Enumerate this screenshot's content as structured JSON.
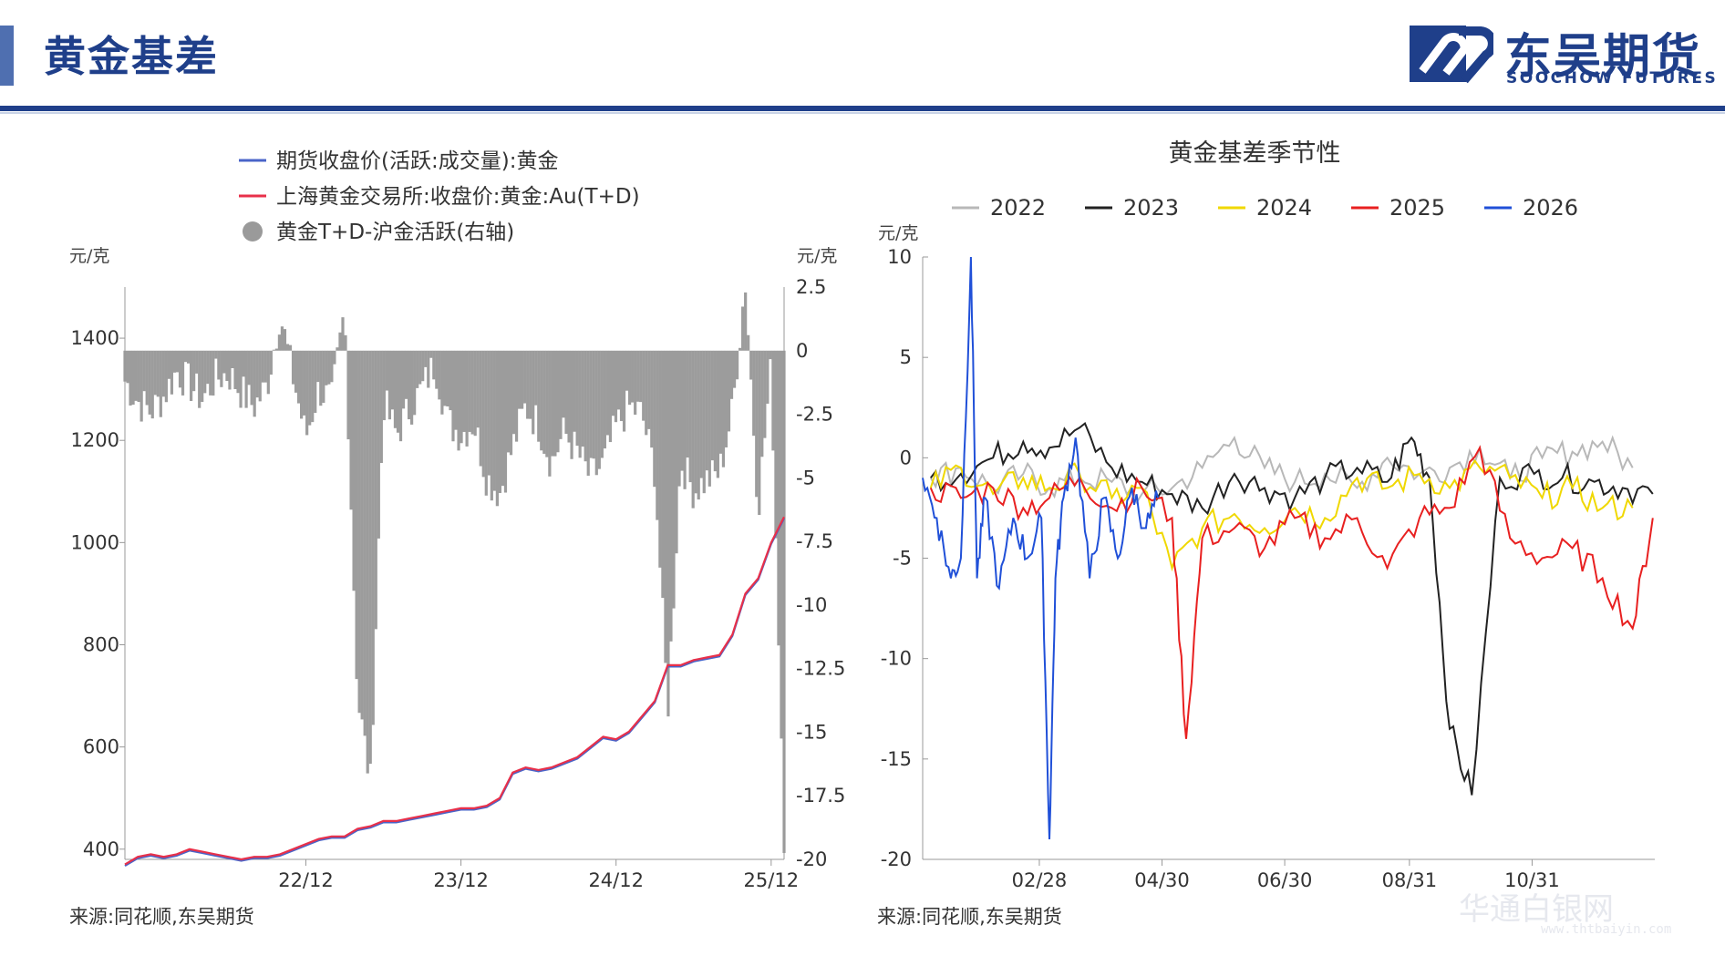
{
  "header": {
    "title": "黄金基差",
    "brand_cn": "东吴期货",
    "brand_en": "SOOCHOW FUTURES",
    "brand_color": "#1f3f8a",
    "accent_color": "#4f6fb0"
  },
  "watermark": {
    "text": "华通白银网",
    "url": "www.thtbaiyin.com"
  },
  "chart_data": [
    {
      "type": "line",
      "legend": [
        {
          "name": "期货收盘价(活跃:成交量):黄金",
          "color": "#4a64c8",
          "marker": "line"
        },
        {
          "name": "上海黄金交易所:收盘价:黄金:Au(T+D)",
          "color": "#e8304a",
          "marker": "line"
        },
        {
          "name": "黄金T+D-沪金活跃(右轴)",
          "color": "#9a9a9a",
          "marker": "dot"
        }
      ],
      "y_left": {
        "label": "元/克",
        "ticks": [
          400,
          600,
          800,
          1000,
          1200,
          1400
        ],
        "range": [
          380,
          1500
        ]
      },
      "y_right": {
        "label": "元/克",
        "ticks": [
          "2.5",
          "0",
          "-2.5",
          "-5",
          "-7.5",
          "-10",
          "-12.5",
          "-15",
          "-17.5",
          "-20"
        ],
        "range": [
          -20,
          2.5
        ]
      },
      "x_ticks": [
        "22/12",
        "23/12",
        "24/12",
        "25/12"
      ],
      "x_range": [
        "2021-10",
        "2026-01"
      ],
      "price_series": {
        "x": [
          "2021-10",
          "2021-11",
          "2021-12",
          "2022-01",
          "2022-02",
          "2022-03",
          "2022-04",
          "2022-05",
          "2022-06",
          "2022-07",
          "2022-08",
          "2022-09",
          "2022-10",
          "2022-11",
          "2022-12",
          "2023-01",
          "2023-02",
          "2023-03",
          "2023-04",
          "2023-05",
          "2023-06",
          "2023-07",
          "2023-08",
          "2023-09",
          "2023-10",
          "2023-11",
          "2023-12",
          "2024-01",
          "2024-02",
          "2024-03",
          "2024-04",
          "2024-05",
          "2024-06",
          "2024-07",
          "2024-08",
          "2024-09",
          "2024-10",
          "2024-11",
          "2024-12",
          "2025-01",
          "2025-02",
          "2025-03",
          "2025-04",
          "2025-05",
          "2025-06",
          "2025-07",
          "2025-08",
          "2025-09",
          "2025-10",
          "2025-11",
          "2025-12",
          "2026-01"
        ],
        "values": [
          370,
          385,
          390,
          385,
          390,
          400,
          395,
          390,
          385,
          380,
          385,
          385,
          390,
          400,
          410,
          420,
          425,
          425,
          440,
          445,
          455,
          455,
          460,
          465,
          470,
          475,
          480,
          480,
          485,
          500,
          550,
          560,
          555,
          560,
          570,
          580,
          600,
          620,
          615,
          630,
          660,
          690,
          760,
          760,
          770,
          775,
          780,
          820,
          900,
          930,
          1000,
          1050
        ]
      },
      "spread_series": {
        "x": [
          "2021-10",
          "2021-11",
          "2021-12",
          "2022-01",
          "2022-02",
          "2022-03",
          "2022-04",
          "2022-05",
          "2022-06",
          "2022-07",
          "2022-08",
          "2022-09",
          "2022-10",
          "2022-11",
          "2022-12",
          "2023-01",
          "2023-02",
          "2023-03",
          "2023-04",
          "2023-05",
          "2023-06",
          "2023-07",
          "2023-08",
          "2023-09",
          "2023-10",
          "2023-11",
          "2023-12",
          "2024-01",
          "2024-02",
          "2024-03",
          "2024-04",
          "2024-05",
          "2024-06",
          "2024-07",
          "2024-08",
          "2024-09",
          "2024-10",
          "2024-11",
          "2024-12",
          "2025-01",
          "2025-02",
          "2025-03",
          "2025-04",
          "2025-05",
          "2025-06",
          "2025-07",
          "2025-08",
          "2025-09",
          "2025-10",
          "2025-11",
          "2025-12",
          "2026-01"
        ],
        "values": [
          -1.2,
          -2.0,
          -2.4,
          -1.8,
          -0.8,
          -1.3,
          -1.9,
          -1.1,
          -0.9,
          -1.6,
          -2.2,
          -1.4,
          1.5,
          -1.0,
          -3.4,
          -1.5,
          -2.0,
          1.6,
          -13.6,
          -17.0,
          -2.0,
          -3.3,
          -2.3,
          -1.5,
          -0.5,
          -2.8,
          -3.3,
          -2.8,
          -5.0,
          -5.6,
          -3.8,
          -2.2,
          -2.9,
          -4.4,
          -3.2,
          -4.0,
          -5.0,
          -4.5,
          -3.0,
          -2.2,
          -2.5,
          -4.7,
          -14.2,
          -4.3,
          -5.5,
          -5.1,
          -4.8,
          -2.4,
          2.8,
          -6.2,
          -0.6,
          -19.0
        ]
      }
    },
    {
      "type": "line",
      "title": "黄金基差季节性",
      "ylabel": "元/克",
      "y_ticks": [
        10,
        5,
        0,
        -5,
        -10,
        -15,
        -20
      ],
      "ylim": [
        -20,
        10
      ],
      "x_ticks": [
        "02/28",
        "04/30",
        "06/30",
        "08/31",
        "10/31"
      ],
      "x_range": [
        "01/01",
        "12/31"
      ],
      "series": [
        {
          "name": "2022",
          "color": "#b8b8b8",
          "x": [
            "01/05",
            "01/20",
            "02/05",
            "02/20",
            "03/05",
            "03/20",
            "04/05",
            "04/20",
            "05/05",
            "05/20",
            "06/05",
            "06/20",
            "07/05",
            "07/20",
            "08/05",
            "08/20",
            "09/05",
            "09/20",
            "10/05",
            "10/20",
            "11/05",
            "11/20",
            "12/05",
            "12/20"
          ],
          "values": [
            -1.0,
            -0.5,
            -1.5,
            -0.8,
            -1.5,
            -1.0,
            -1.2,
            -1.8,
            -1.5,
            -0.5,
            1.0,
            -0.5,
            -1.2,
            -0.8,
            -1.5,
            0.0,
            -0.8,
            -0.5,
            0.5,
            -1.0,
            0.0,
            0.3,
            0.8,
            -0.5
          ]
        },
        {
          "name": "2023",
          "color": "#222222",
          "x": [
            "01/05",
            "01/20",
            "02/05",
            "02/20",
            "03/05",
            "03/20",
            "04/05",
            "04/20",
            "05/05",
            "05/20",
            "06/05",
            "06/20",
            "07/05",
            "07/20",
            "08/05",
            "08/20",
            "09/01",
            "09/10",
            "09/20",
            "10/01",
            "10/15",
            "11/01",
            "11/15",
            "12/01",
            "12/15",
            "12/30"
          ],
          "values": [
            -1.0,
            -0.8,
            0.0,
            0.8,
            0.5,
            1.5,
            -0.5,
            -1.2,
            -1.8,
            -2.5,
            -0.8,
            -1.5,
            -2.0,
            -1.0,
            -0.5,
            -1.2,
            1.0,
            -1.0,
            -13.5,
            -16.8,
            -1.0,
            -0.8,
            -1.0,
            -1.2,
            -1.5,
            -1.8
          ]
        },
        {
          "name": "2024",
          "color": "#f0d800",
          "x": [
            "01/05",
            "01/20",
            "02/05",
            "02/20",
            "03/05",
            "03/20",
            "04/05",
            "04/20",
            "05/05",
            "05/20",
            "06/05",
            "06/20",
            "07/05",
            "07/20",
            "08/05",
            "08/20",
            "09/05",
            "09/20",
            "10/05",
            "10/20",
            "11/05",
            "11/20",
            "12/05",
            "12/20"
          ],
          "values": [
            -1.5,
            -0.5,
            -1.8,
            -1.0,
            -1.5,
            -0.8,
            -2.0,
            -1.5,
            -5.5,
            -3.5,
            -2.8,
            -3.5,
            -2.5,
            -3.0,
            -1.0,
            -1.5,
            -0.8,
            -1.5,
            -0.5,
            -1.0,
            -2.0,
            -1.5,
            -2.5,
            -2.5
          ]
        },
        {
          "name": "2025",
          "color": "#e82020",
          "x": [
            "01/05",
            "01/20",
            "02/05",
            "02/20",
            "03/05",
            "03/20",
            "04/05",
            "04/20",
            "05/05",
            "05/12",
            "05/20",
            "06/05",
            "06/20",
            "07/05",
            "07/20",
            "08/05",
            "08/20",
            "09/05",
            "09/20",
            "10/05",
            "10/20",
            "11/05",
            "11/20",
            "12/05",
            "12/20",
            "12/30"
          ],
          "values": [
            -1.5,
            -2.0,
            -1.5,
            -2.5,
            -2.0,
            -1.0,
            -2.5,
            -1.5,
            -3.0,
            -14.0,
            -4.0,
            -3.5,
            -4.5,
            -3.0,
            -4.0,
            -3.0,
            -5.5,
            -3.0,
            -2.5,
            0.5,
            -4.0,
            -5.0,
            -4.5,
            -6.0,
            -8.5,
            -3.0
          ]
        },
        {
          "name": "2026",
          "color": "#2050d8",
          "x": [
            "01/01",
            "01/08",
            "01/15",
            "01/20",
            "01/25",
            "01/28",
            "02/01",
            "02/08",
            "02/15",
            "02/22",
            "03/01",
            "03/05",
            "03/08",
            "03/12",
            "03/18",
            "03/25",
            "04/01",
            "04/08",
            "04/15",
            "04/22",
            "04/28"
          ],
          "values": [
            -1.0,
            -3.0,
            -6.0,
            -5.0,
            10.0,
            -6.0,
            -2.0,
            -6.5,
            -3.0,
            -5.0,
            -3.0,
            -19.0,
            -6.0,
            -2.0,
            1.0,
            -6.0,
            -2.0,
            -5.0,
            -1.5,
            -3.5,
            -2.0
          ]
        }
      ]
    }
  ],
  "sources": {
    "left": "来源:同花顺,东吴期货",
    "right": "来源:同花顺,东吴期货"
  }
}
